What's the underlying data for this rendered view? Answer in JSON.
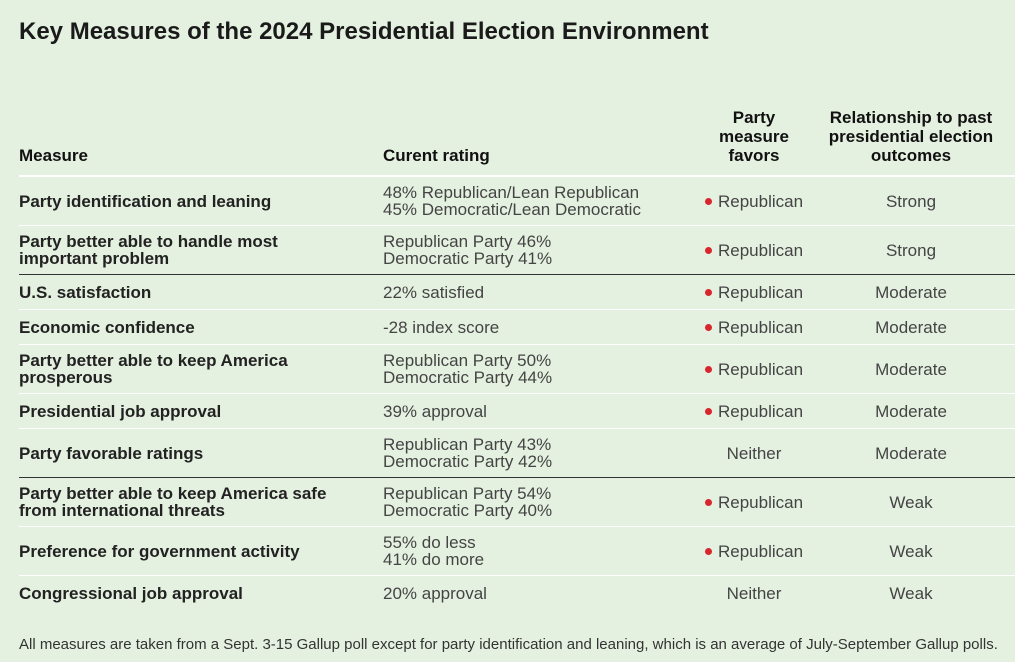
{
  "header": {
    "title": "Key Measures of the 2024 Presidential Election Environment"
  },
  "table": {
    "columns": [
      "Measure",
      "Curent rating",
      "Party measure favors",
      "Relationship to past presidential election outcomes"
    ],
    "rows": [
      {
        "measure": "Party identification and leaning",
        "rating": [
          "48% Republican/Lean Republican",
          "45% Democratic/Lean Democratic"
        ],
        "favors": "Republican",
        "marker_color": "#d9262e",
        "relationship": "Strong"
      },
      {
        "measure": "Party better able to handle most important problem",
        "rating": [
          "Republican Party 46%",
          "Democratic Party 41%"
        ],
        "favors": "Republican",
        "marker_color": "#d9262e",
        "relationship": "Strong"
      },
      {
        "measure": "U.S. satisfaction",
        "rating": [
          "22% satisfied"
        ],
        "favors": "Republican",
        "marker_color": "#d9262e",
        "relationship": "Moderate"
      },
      {
        "measure": "Economic confidence",
        "rating": [
          "-28 index score"
        ],
        "favors": "Republican",
        "marker_color": "#d9262e",
        "relationship": "Moderate"
      },
      {
        "measure": "Party better able to keep America prosperous",
        "rating": [
          "Republican Party 50%",
          "Democratic Party 44%"
        ],
        "favors": "Republican",
        "marker_color": "#d9262e",
        "relationship": "Moderate"
      },
      {
        "measure": "Presidential job approval",
        "rating": [
          "39% approval"
        ],
        "favors": "Republican",
        "marker_color": "#d9262e",
        "relationship": "Moderate"
      },
      {
        "measure": "Party favorable ratings",
        "rating": [
          "Republican Party 43%",
          "Democratic Party 42%"
        ],
        "favors": "Neither",
        "relationship": "Moderate"
      },
      {
        "measure": "Party better able to keep America safe from international threats",
        "rating": [
          "Republican Party 54%",
          "Democratic Party 40%"
        ],
        "favors": "Republican",
        "marker_color": "#d9262e",
        "relationship": "Weak"
      },
      {
        "measure": "Preference for government activity",
        "rating": [
          "55% do less",
          "41% do more"
        ],
        "favors": "Republican",
        "marker_color": "#d9262e",
        "relationship": "Weak"
      },
      {
        "measure": "Congressional job approval",
        "rating": [
          "20% approval"
        ],
        "favors": "Neither",
        "relationship": "Weak"
      }
    ]
  },
  "footnote": "All measures are taken from a Sept. 3-15 Gallup poll except for party identification and leaning, which is an average of July-September Gallup polls."
}
